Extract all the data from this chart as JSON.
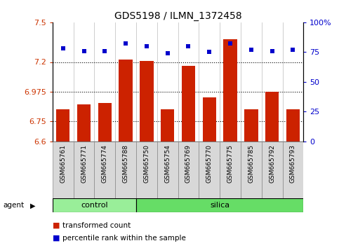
{
  "title": "GDS5198 / ILMN_1372458",
  "samples": [
    "GSM665761",
    "GSM665771",
    "GSM665774",
    "GSM665788",
    "GSM665750",
    "GSM665754",
    "GSM665769",
    "GSM665770",
    "GSM665775",
    "GSM665785",
    "GSM665792",
    "GSM665793"
  ],
  "red_values": [
    6.84,
    6.88,
    6.89,
    7.22,
    7.21,
    6.84,
    7.17,
    6.93,
    7.37,
    6.84,
    6.975,
    6.84
  ],
  "blue_values": [
    78,
    76,
    76,
    82,
    80,
    74,
    80,
    75,
    82,
    77,
    76,
    77
  ],
  "ylim_left": [
    6.6,
    7.5
  ],
  "ylim_right": [
    0,
    100
  ],
  "yticks_left": [
    6.6,
    6.75,
    6.975,
    7.2,
    7.5
  ],
  "ytick_labels_left": [
    "6.6",
    "6.75",
    "6.975",
    "7.2",
    "7.5"
  ],
  "yticks_right": [
    0,
    25,
    50,
    75,
    100
  ],
  "ytick_labels_right": [
    "0",
    "25",
    "50",
    "75",
    "100%"
  ],
  "hlines": [
    7.2,
    6.975,
    6.75
  ],
  "bar_color": "#cc2200",
  "dot_color": "#0000cc",
  "control_color": "#99ee99",
  "silica_color": "#66dd66",
  "control_count": 4,
  "silica_count": 8,
  "legend_red": "transformed count",
  "legend_blue": "percentile rank within the sample",
  "bar_width": 0.65,
  "xlabel_bg": "#d8d8d8",
  "background_color": "#ffffff"
}
